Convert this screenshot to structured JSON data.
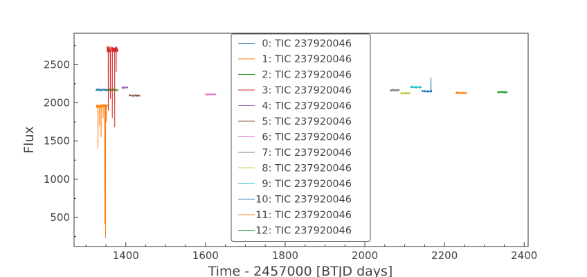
{
  "chart_data": {
    "type": "line",
    "xlabel": "Time - 2457000 [BTJD days]",
    "ylabel": "Flux",
    "xlim": [
      1270,
      2410
    ],
    "ylim": [
      120,
      2910
    ],
    "x_ticks": [
      1400,
      1600,
      1800,
      2000,
      2200,
      2400
    ],
    "y_ticks": [
      500,
      1000,
      1500,
      2000,
      2500
    ],
    "legend_position": "top-center",
    "grid": false,
    "series": [
      {
        "name": "0: TIC 237920046",
        "color": "#1f77b4",
        "x_range": [
          1325,
          1352
        ],
        "level": 2170,
        "noise": 12,
        "spikes": []
      },
      {
        "name": "1: TIC 237920046",
        "color": "#ff7f0e",
        "x_range": [
          1326,
          1354
        ],
        "level": 1960,
        "noise": 20,
        "spikes": [
          [
            1330,
            1400
          ],
          [
            1334,
            1700
          ],
          [
            1338,
            1550
          ],
          [
            1343,
            1800
          ],
          [
            1347,
            420
          ],
          [
            1349,
            230
          ],
          [
            1351,
            1750
          ]
        ]
      },
      {
        "name": "2: TIC 237920046",
        "color": "#2ca02c",
        "x_range": [
          1352,
          1380
        ],
        "level": 2170,
        "noise": 12,
        "spikes": []
      },
      {
        "name": "3: TIC 237920046",
        "color": "#d62728",
        "x_range": [
          1353,
          1380
        ],
        "level": 2700,
        "noise": 40,
        "spikes": [
          [
            1356,
            1900
          ],
          [
            1361,
            2050
          ],
          [
            1366,
            1800
          ],
          [
            1372,
            1680
          ],
          [
            1376,
            2400
          ]
        ]
      },
      {
        "name": "4: TIC 237920046",
        "color": "#9467bd",
        "x_range": [
          1390,
          1405
        ],
        "level": 2200,
        "noise": 10,
        "spikes": []
      },
      {
        "name": "5: TIC 237920046",
        "color": "#8c564b",
        "x_range": [
          1408,
          1436
        ],
        "level": 2095,
        "noise": 10,
        "spikes": []
      },
      {
        "name": "6: TIC 237920046",
        "color": "#e377c2",
        "x_range": [
          1600,
          1626
        ],
        "level": 2110,
        "noise": 10,
        "spikes": []
      },
      {
        "name": "7: TIC 237920046",
        "color": "#7f7f7f",
        "x_range": [
          2063,
          2088
        ],
        "level": 2165,
        "noise": 10,
        "spikes": []
      },
      {
        "name": "8: TIC 237920046",
        "color": "#bcbd22",
        "x_range": [
          2090,
          2114
        ],
        "level": 2125,
        "noise": 10,
        "spikes": []
      },
      {
        "name": "9: TIC 237920046",
        "color": "#17becf",
        "x_range": [
          2115,
          2142
        ],
        "level": 2205,
        "noise": 10,
        "spikes": []
      },
      {
        "name": "10: TIC 237920046",
        "color": "#1f77b4",
        "x_range": [
          2143,
          2168
        ],
        "level": 2150,
        "noise": 10,
        "spikes": [
          [
            2166,
            2330
          ]
        ]
      },
      {
        "name": "11: TIC 237920046",
        "color": "#ff7f0e",
        "x_range": [
          2228,
          2256
        ],
        "level": 2130,
        "noise": 10,
        "spikes": []
      },
      {
        "name": "12: TIC 237920046",
        "color": "#2ca02c",
        "x_range": [
          2333,
          2358
        ],
        "level": 2140,
        "noise": 12,
        "spikes": []
      }
    ]
  }
}
